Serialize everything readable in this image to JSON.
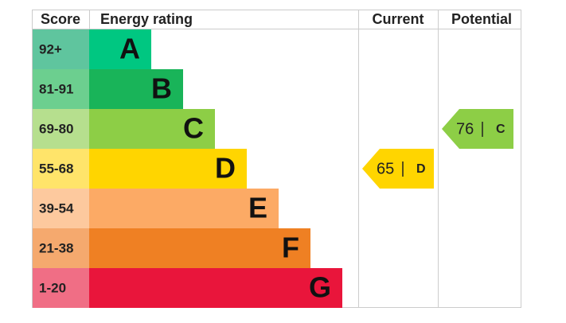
{
  "header": {
    "score": "Score",
    "rating": "Energy rating",
    "current": "Current",
    "potential": "Potential"
  },
  "bands": [
    {
      "score": "92+",
      "letter": "A",
      "color": "#00c781",
      "score_color": "#5fc59e"
    },
    {
      "score": "81-91",
      "letter": "B",
      "color": "#19b459",
      "score_color": "#6ccf8f"
    },
    {
      "score": "69-80",
      "letter": "C",
      "color": "#8dce46",
      "score_color": "#b6df8e"
    },
    {
      "score": "55-68",
      "letter": "D",
      "color": "#ffd500",
      "score_color": "#ffe46a"
    },
    {
      "score": "39-54",
      "letter": "E",
      "color": "#fcaa65",
      "score_color": "#fdc99e"
    },
    {
      "score": "21-38",
      "letter": "F",
      "color": "#ef8023",
      "score_color": "#f5a96e"
    },
    {
      "score": "1-20",
      "letter": "G",
      "color": "#e9153b",
      "score_color": "#f06e85"
    }
  ],
  "current": {
    "value": 65,
    "letter": "D"
  },
  "potential": {
    "value": 76,
    "letter": "C"
  }
}
